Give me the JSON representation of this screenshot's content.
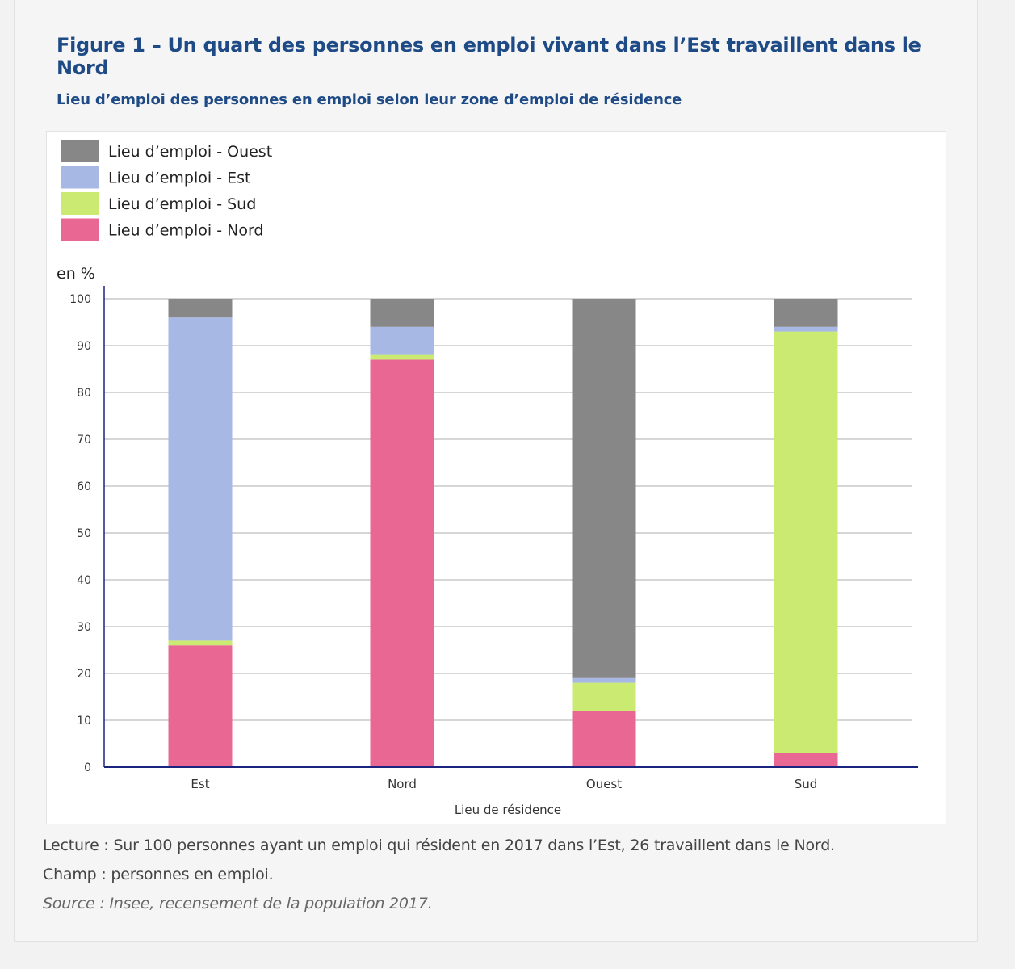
{
  "figure": {
    "title": "Figure 1 – Un quart des personnes en emploi vivant dans l’Est travaillent dans le Nord",
    "subtitle": "Lieu d’emploi des personnes en emploi selon leur zone d’emploi de résidence"
  },
  "notes": {
    "lecture": "Lecture : Sur 100 personnes ayant un emploi qui résident en 2017 dans l’Est, 26 travaillent dans le Nord.",
    "champ": "Champ : personnes en emploi.",
    "source": "Source : Insee, recensement de la population 2017."
  },
  "chart_data": {
    "type": "bar",
    "stacked": true,
    "title": "Lieu d’emploi des personnes en emploi selon leur zone d’emploi de résidence",
    "xlabel": "Lieu de résidence",
    "ylabel": "en %",
    "ylim": [
      0,
      100
    ],
    "yticks": [
      0,
      10,
      20,
      30,
      40,
      50,
      60,
      70,
      80,
      90,
      100
    ],
    "grid": true,
    "legend_position": "top-left",
    "categories": [
      "Est",
      "Nord",
      "Ouest",
      "Sud"
    ],
    "series": [
      {
        "name": "Lieu d’emploi - Nord",
        "color": "#e86893",
        "values": [
          26,
          87,
          12,
          3
        ]
      },
      {
        "name": "Lieu d’emploi - Sud",
        "color": "#cbea72",
        "values": [
          1,
          1,
          6,
          90
        ]
      },
      {
        "name": "Lieu d’emploi - Est",
        "color": "#a6b8e3",
        "values": [
          69,
          6,
          1,
          1
        ]
      },
      {
        "name": "Lieu d’emploi - Ouest",
        "color": "#878787",
        "values": [
          4,
          6,
          81,
          6
        ]
      }
    ],
    "legend_order": [
      "Lieu d’emploi - Ouest",
      "Lieu d’emploi - Est",
      "Lieu d’emploi - Sud",
      "Lieu d’emploi - Nord"
    ]
  }
}
